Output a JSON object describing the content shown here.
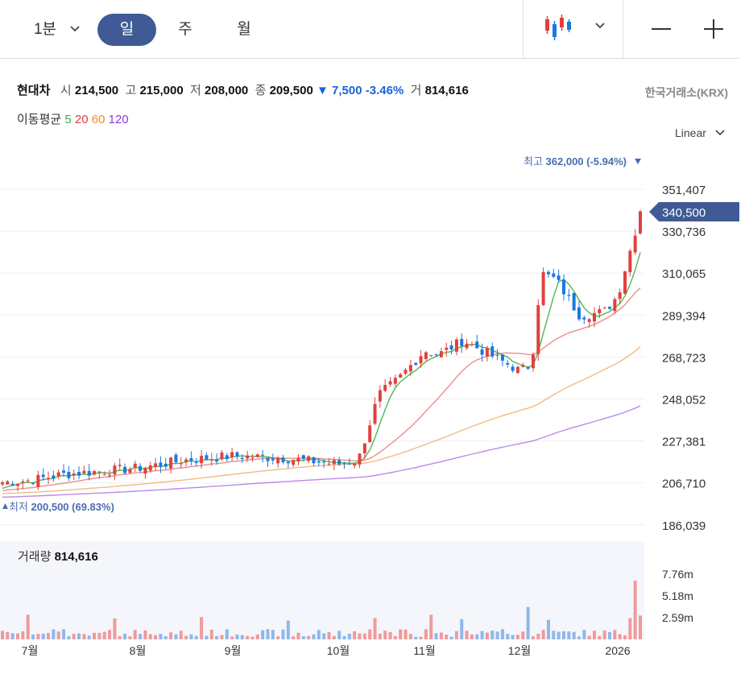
{
  "toolbar": {
    "interval_minute": "1분",
    "tab_day": "일",
    "tab_week": "주",
    "tab_month": "월",
    "chart_type_icon": "candlestick-icon",
    "zoom_out_icon": "minus-icon",
    "zoom_in_icon": "plus-icon"
  },
  "stock": {
    "name": "현대차",
    "open_label": "시",
    "open": "214,500",
    "high_label": "고",
    "high": "215,000",
    "low_label": "저",
    "low": "208,000",
    "close_label": "종",
    "close": "209,500",
    "change": "7,500",
    "change_pct": "-3.46%",
    "volume_label": "거",
    "volume": "814,616",
    "exchange": "한국거래소(KRX)"
  },
  "moving_average": {
    "label": "이동평균",
    "periods": [
      "5",
      "20",
      "60",
      "120"
    ],
    "colors": [
      "#3fae3f",
      "#e0413f",
      "#e8902f",
      "#8a3fd8"
    ]
  },
  "scale_mode": "Linear",
  "max_marker": {
    "label": "최고",
    "value": "362,000 (-5.94%)"
  },
  "min_marker": {
    "label": "최저",
    "value": "200,500 (69.83%)"
  },
  "current_price_tag": "340,500",
  "volume_panel": {
    "label": "거래량",
    "value": "814,616",
    "ticks": [
      "7.76m",
      "5.18m",
      "2.59m"
    ]
  },
  "colors": {
    "up": "#e0413f",
    "down": "#1b78e0",
    "accent": "#3f5a95"
  },
  "chart_data": {
    "type": "candlestick",
    "y_ticks": [
      "351,407",
      "330,736",
      "310,065",
      "289,394",
      "268,723",
      "248,052",
      "227,381",
      "206,710",
      "186,039"
    ],
    "ylim": [
      186039,
      362000
    ],
    "x_labels": [
      "7월",
      "8월",
      "9월",
      "10월",
      "11월",
      "12월",
      "2026"
    ],
    "close_by_month": {
      "7월": 208000,
      "8월": 214000,
      "9월": 220000,
      "10월": 216000,
      "11월": 272000,
      "12월": 262000,
      "2026": 340500
    },
    "series": [
      {
        "name": "5",
        "color": "#3fae3f"
      },
      {
        "name": "20",
        "color": "#e0413f"
      },
      {
        "name": "60",
        "color": "#e8902f"
      },
      {
        "name": "120",
        "color": "#8a3fd8"
      }
    ],
    "volume_ylim": [
      0,
      7760000
    ]
  }
}
